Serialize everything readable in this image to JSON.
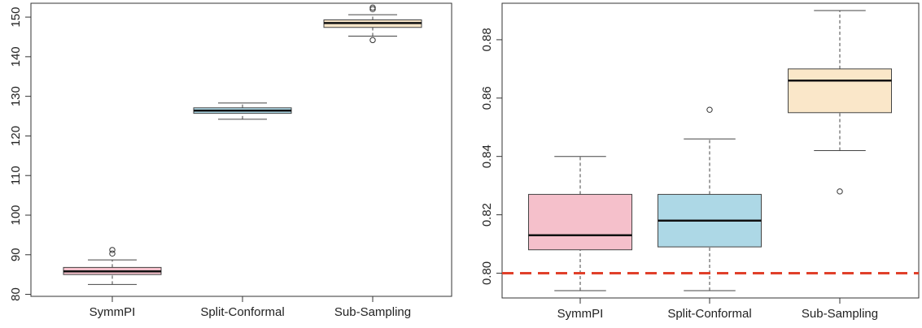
{
  "chart_data": [
    {
      "type": "boxplot",
      "title": "",
      "xlabel": "",
      "ylabel": "",
      "categories": [
        "SymmPI",
        "Split-Conformal",
        "Sub-Sampling"
      ],
      "ylim": [
        79.5,
        153.5
      ],
      "yticks": [
        80,
        90,
        100,
        110,
        120,
        130,
        140,
        150
      ],
      "grid": false,
      "colors": [
        "#F5C0CB",
        "#ADD8E6",
        "#FAE7C9"
      ],
      "boxes": [
        {
          "name": "SymmPI",
          "whisker_low": 82.5,
          "q1": 85.0,
          "median": 85.8,
          "q3": 86.8,
          "whisker_high": 88.7,
          "outliers": [
            90.3,
            91.2
          ]
        },
        {
          "name": "Split-Conformal",
          "whisker_low": 124.2,
          "q1": 125.7,
          "median": 126.4,
          "q3": 127.1,
          "whisker_high": 128.3,
          "outliers": []
        },
        {
          "name": "Sub-Sampling",
          "whisker_low": 145.2,
          "q1": 147.4,
          "median": 148.5,
          "q3": 149.3,
          "whisker_high": 150.6,
          "outliers": [
            144.2,
            152.0,
            152.4
          ]
        }
      ]
    },
    {
      "type": "boxplot",
      "title": "",
      "xlabel": "",
      "ylabel": "",
      "categories": [
        "SymmPI",
        "Split-Conformal",
        "Sub-Sampling"
      ],
      "ylim": [
        0.7915,
        0.8925
      ],
      "yticks": [
        "0.80",
        "0.82",
        "0.84",
        "0.86",
        "0.88"
      ],
      "grid": false,
      "colors": [
        "#F5C0CB",
        "#ADD8E6",
        "#FAE7C9"
      ],
      "reference_line": {
        "y": 0.8,
        "color": "#E0402A",
        "style": "dashed"
      },
      "boxes": [
        {
          "name": "SymmPI",
          "whisker_low": 0.794,
          "q1": 0.808,
          "median": 0.813,
          "q3": 0.827,
          "whisker_high": 0.84,
          "outliers": []
        },
        {
          "name": "Split-Conformal",
          "whisker_low": 0.794,
          "q1": 0.809,
          "median": 0.818,
          "q3": 0.827,
          "whisker_high": 0.846,
          "outliers": [
            0.856
          ]
        },
        {
          "name": "Sub-Sampling",
          "whisker_low": 0.842,
          "q1": 0.855,
          "median": 0.866,
          "q3": 0.87,
          "whisker_high": 0.89,
          "outliers": [
            0.828
          ]
        }
      ]
    }
  ]
}
